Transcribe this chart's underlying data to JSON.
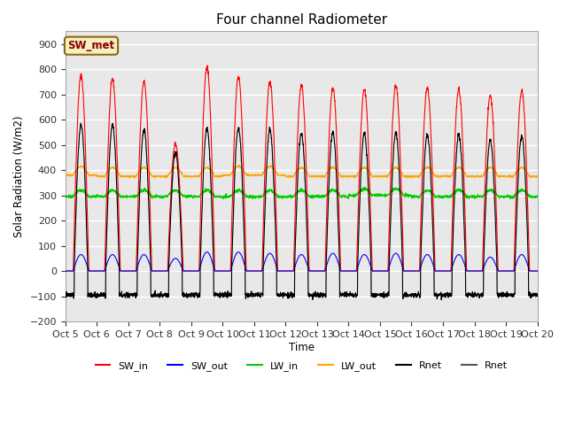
{
  "title": "Four channel Radiometer",
  "ylabel": "Solar Radiation (W/m2)",
  "xlabel": "Time",
  "ylim": [
    -200,
    950
  ],
  "yticks": [
    -200,
    -100,
    0,
    100,
    200,
    300,
    400,
    500,
    600,
    700,
    800,
    900
  ],
  "xtick_labels": [
    "Oct 5",
    "Oct 6",
    "Oct 7",
    "Oct 8",
    "Oct 9",
    "Oct 10",
    "Oct 11",
    "Oct 12",
    "Oct 13",
    "Oct 14",
    "Oct 15",
    "Oct 16",
    "Oct 17",
    "Oct 18",
    "Oct 19",
    "Oct 20"
  ],
  "n_days": 15,
  "background_color": "#e8e8e8",
  "grid_color": "#ffffff",
  "legend_label": "SW_met",
  "sw_in_peaks": [
    775,
    760,
    750,
    505,
    810,
    770,
    750,
    735,
    725,
    720,
    735,
    725,
    720,
    695,
    715
  ],
  "sw_out_peaks": [
    65,
    65,
    65,
    50,
    75,
    75,
    70,
    65,
    70,
    65,
    70,
    65,
    65,
    55,
    65
  ],
  "lw_in_base": [
    295,
    295,
    295,
    295,
    295,
    295,
    295,
    295,
    295,
    300,
    300,
    295,
    295,
    295,
    295
  ],
  "lw_out_base": [
    380,
    375,
    375,
    375,
    375,
    380,
    380,
    375,
    375,
    375,
    375,
    375,
    375,
    375,
    375
  ],
  "rnet_peaks": [
    580,
    580,
    560,
    470,
    565,
    565,
    560,
    545,
    550,
    545,
    545,
    540,
    540,
    520,
    535
  ],
  "series_colors": {
    "SW_in": "#ff0000",
    "SW_out": "#0000ff",
    "LW_in": "#00cc00",
    "LW_out": "#ffa500",
    "Rnet1": "#000000",
    "Rnet2": "#555555"
  }
}
